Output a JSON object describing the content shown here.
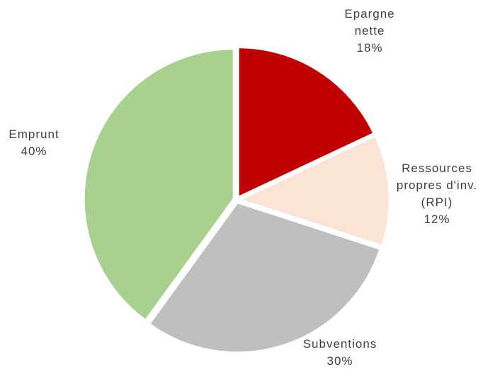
{
  "chart_data": {
    "type": "pie",
    "categories": [
      "Epargne nette",
      "Ressources propres d'inv. (RPI)",
      "Subventions",
      "Emprunt"
    ],
    "values": [
      18,
      12,
      30,
      40
    ],
    "value_labels": [
      "18%",
      "12%",
      "30%",
      "40%"
    ],
    "colors": [
      "#c00000",
      "#fbe3d6",
      "#bfbfbf",
      "#a9d18e"
    ]
  }
}
